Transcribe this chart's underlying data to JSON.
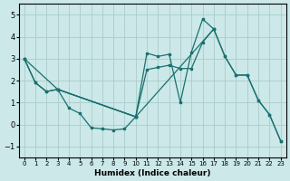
{
  "xlabel": "Humidex (Indice chaleur)",
  "background_color": "#cce8e8",
  "grid_color": "#aacccc",
  "line_color": "#1a7070",
  "xlim": [
    -0.5,
    23.5
  ],
  "ylim": [
    -1.5,
    5.5
  ],
  "xticks": [
    0,
    1,
    2,
    3,
    4,
    5,
    6,
    7,
    8,
    9,
    10,
    11,
    12,
    13,
    14,
    15,
    16,
    17,
    18,
    19,
    20,
    21,
    22,
    23
  ],
  "yticks": [
    -1,
    0,
    1,
    2,
    3,
    4,
    5
  ],
  "line1_x": [
    0,
    1,
    2,
    3,
    10,
    11,
    12,
    13,
    14,
    15,
    16,
    17
  ],
  "line1_y": [
    3.0,
    1.9,
    1.5,
    1.6,
    0.35,
    3.25,
    3.1,
    3.2,
    1.0,
    3.3,
    4.8,
    4.35
  ],
  "line2_x": [
    3,
    4,
    5,
    6,
    7,
    8,
    9,
    10
  ],
  "line2_y": [
    1.6,
    0.75,
    0.5,
    -0.15,
    -0.2,
    -0.25,
    -0.2,
    0.35
  ],
  "line3_x": [
    0,
    3,
    10,
    11,
    12,
    13,
    14,
    15,
    16,
    17,
    18,
    19,
    20,
    21,
    22,
    23
  ],
  "line3_y": [
    3.0,
    1.6,
    0.35,
    2.5,
    2.6,
    2.7,
    2.55,
    2.55,
    3.75,
    4.35,
    3.1,
    2.25,
    2.25,
    1.1,
    0.45,
    -0.75
  ],
  "line4_x": [
    0,
    1,
    2,
    3,
    10,
    17,
    18,
    19,
    20,
    21,
    22,
    23
  ],
  "line4_y": [
    3.0,
    1.9,
    1.5,
    1.6,
    0.35,
    4.35,
    3.1,
    2.25,
    2.25,
    1.1,
    0.45,
    -0.75
  ]
}
